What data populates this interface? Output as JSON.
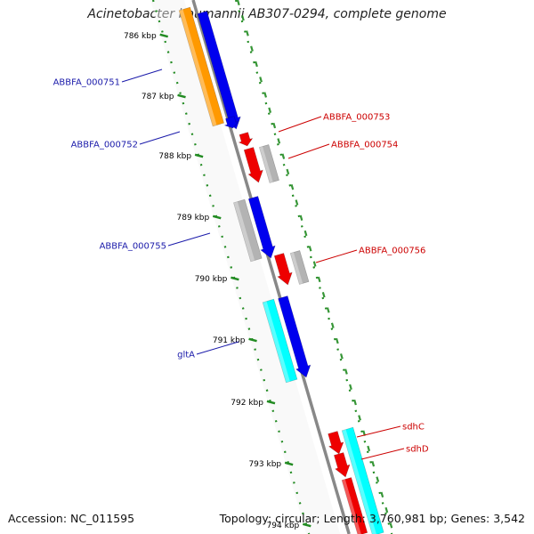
{
  "title": "Acinetobacter baumannii AB307-0294, complete genome",
  "footer": {
    "accession": "Accession: NC_011595",
    "stats": "Topology: circular; Length: 3,760,981 bp; Genes: 3,542"
  },
  "ticks": [
    {
      "label": "786 kbp"
    },
    {
      "label": "787 kbp"
    },
    {
      "label": "788 kbp"
    },
    {
      "label": "789 kbp"
    },
    {
      "label": "790 kbp"
    },
    {
      "label": "791 kbp"
    },
    {
      "label": "792 kbp"
    },
    {
      "label": "793 kbp"
    },
    {
      "label": "794 kbp"
    }
  ],
  "gene_labels": [
    {
      "name": "ABBFA_000751",
      "strand": "reverse"
    },
    {
      "name": "ABBFA_000752",
      "strand": "reverse"
    },
    {
      "name": "ABBFA_000753",
      "strand": "forward"
    },
    {
      "name": "ABBFA_000754",
      "strand": "forward"
    },
    {
      "name": "ABBFA_000755",
      "strand": "reverse"
    },
    {
      "name": "ABBFA_000756",
      "strand": "forward"
    },
    {
      "name": "gltA",
      "strand": "reverse"
    },
    {
      "name": "sdhC",
      "strand": "forward"
    },
    {
      "name": "sdhD",
      "strand": "forward"
    }
  ],
  "colors": {
    "reverse_cds": "#0000ee",
    "forward_cds": "#ee0000",
    "gene_orange": "#ff9900",
    "gene_cyan": "#00ffff",
    "gene_gray": "#b3b3b3",
    "backbone": "#888888",
    "gc_dots": "#228b22",
    "reverse_label": "#1a1aaa",
    "forward_label": "#cc0000"
  }
}
